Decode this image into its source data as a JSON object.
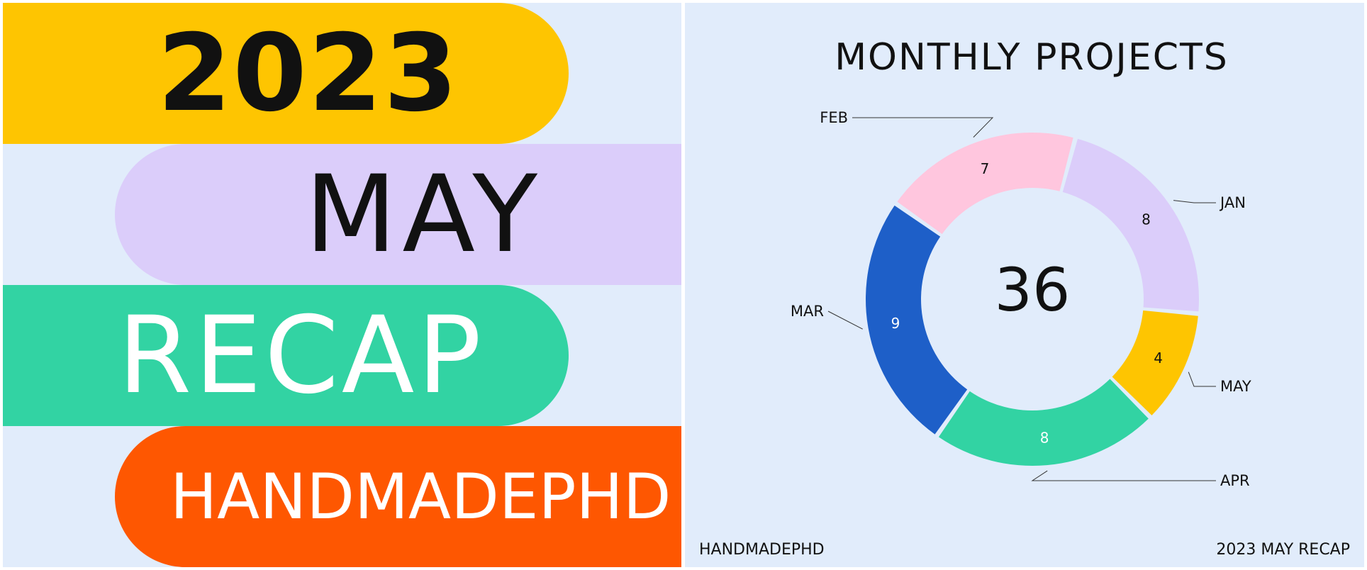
{
  "banner": {
    "year": "2023",
    "month": "MAY",
    "recap": "RECAP",
    "brand": "HANDMADEPHD"
  },
  "colors": {
    "year_band": "#fec501",
    "month_band": "#dbcdfa",
    "recap_band": "#32d3a3",
    "brand_band": "#fe5701",
    "panel_bg": "#e1ecfb"
  },
  "chart_data": {
    "type": "pie",
    "style": "donut",
    "title": "MONTHLY PROJECTS",
    "center_label": "36",
    "categories": [
      "JAN",
      "MAY",
      "APR",
      "MAR",
      "FEB"
    ],
    "values": [
      8,
      4,
      8,
      9,
      7
    ],
    "colors": [
      "#dbcdfa",
      "#fec501",
      "#32d3a3",
      "#1e5fc8",
      "#ffc6de"
    ],
    "value_label_colors": [
      "#111111",
      "#111111",
      "#ffffff",
      "#ffffff",
      "#111111"
    ]
  },
  "footer": {
    "left": "HANDMADEPHD",
    "right": "2023 MAY RECAP"
  }
}
